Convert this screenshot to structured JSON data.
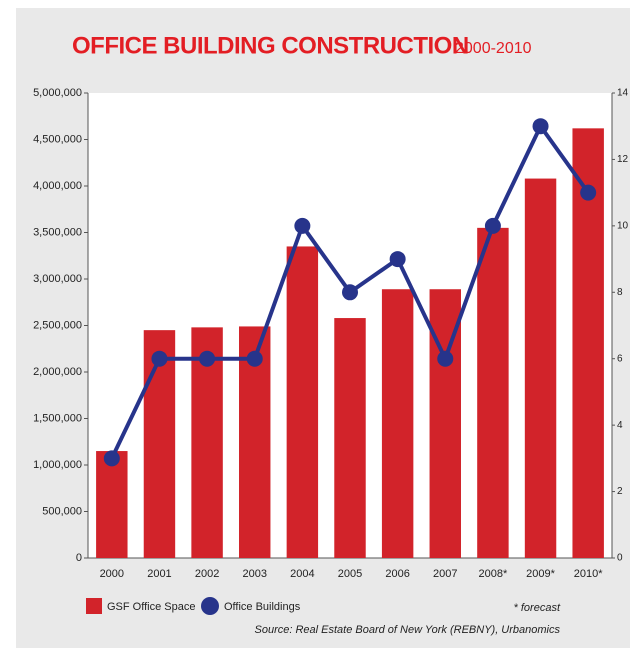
{
  "chart_data": {
    "type": "bar",
    "title": "OFFICE BUILDING CONSTRUCTION",
    "subtitle": "2000-2010",
    "categories": [
      "2000",
      "2001",
      "2002",
      "2003",
      "2004",
      "2005",
      "2006",
      "2007",
      "2008*",
      "2009*",
      "2010*"
    ],
    "series": [
      {
        "name": "GSF Office Space",
        "type": "bar",
        "color": "#d2232a",
        "values": [
          1150000,
          2450000,
          2480000,
          2490000,
          3350000,
          2580000,
          2890000,
          2890000,
          3550000,
          4080000,
          4620000
        ]
      },
      {
        "name": "Office Buildings",
        "type": "line",
        "axis": "y2",
        "color": "#27348b",
        "values": [
          3,
          6,
          6,
          6,
          10,
          8,
          9,
          6,
          10,
          13,
          11
        ]
      }
    ],
    "ylim": [
      0,
      5000000
    ],
    "yticks": [
      0,
      {
        "value": 500000,
        "label": "500,000"
      },
      {
        "value": 1000000,
        "label": "1,000,000"
      },
      {
        "value": 1500000,
        "label": "1,500,000"
      },
      {
        "value": 2000000,
        "label": "2,000,000"
      },
      {
        "value": 2500000,
        "label": "2,500,000"
      },
      {
        "value": 3000000,
        "label": "3,000,000"
      },
      {
        "value": 3500000,
        "label": "3,500,000"
      },
      {
        "value": 4000000,
        "label": "4,000,000"
      },
      {
        "value": 4500000,
        "label": "4,500,000"
      },
      {
        "value": 5000000,
        "label": "5,000,000"
      }
    ],
    "y2lim": [
      0,
      14
    ],
    "y2ticks": [
      0,
      2,
      4,
      6,
      8,
      10,
      12,
      14
    ],
    "note": "* forecast",
    "source": "Source: Real Estate Board of New York (REBNY), Urbanomics"
  }
}
